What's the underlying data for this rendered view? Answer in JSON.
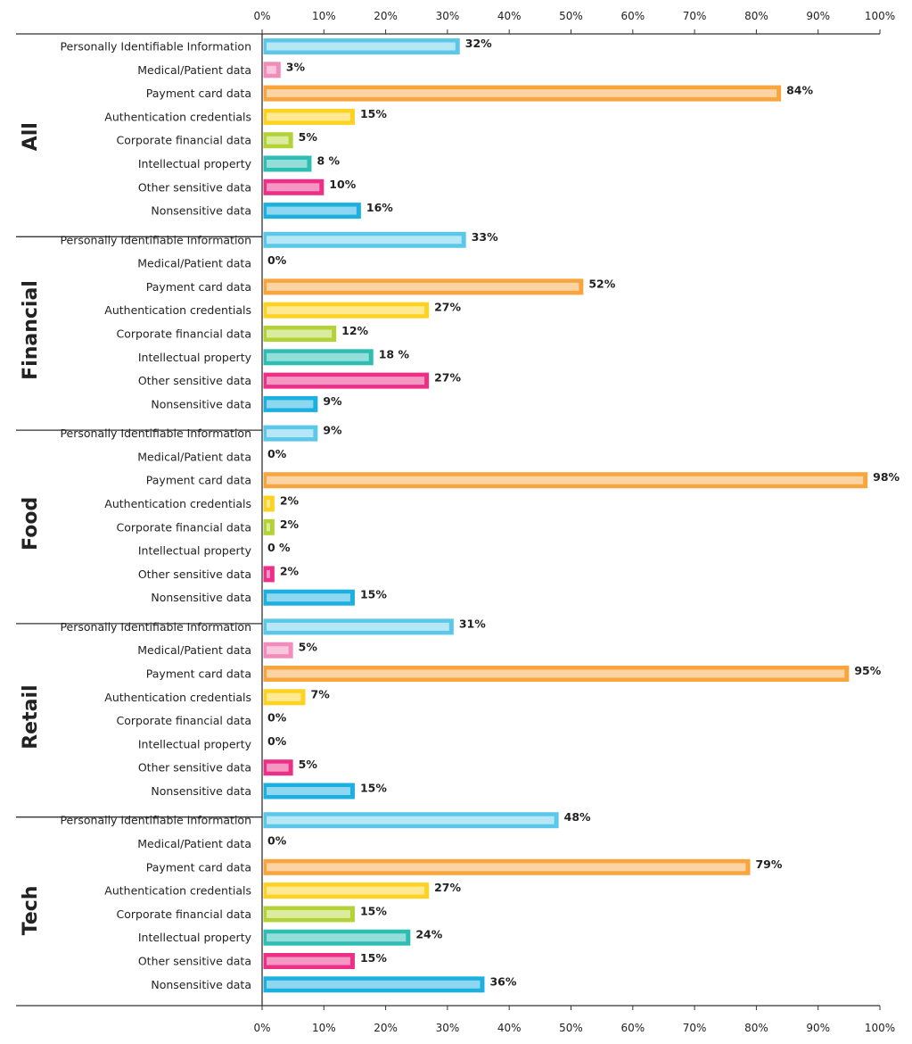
{
  "chart_data": {
    "type": "bar",
    "orientation": "horizontal",
    "xlim": [
      0,
      100
    ],
    "x_ticks": [
      "0%",
      "10%",
      "20%",
      "30%",
      "40%",
      "50%",
      "60%",
      "70%",
      "80%",
      "90%",
      "100%"
    ],
    "categories": [
      "Personally Identifiable Information",
      "Medical/Patient data",
      "Payment card data",
      "Authentication credentials",
      "Corporate financial data",
      "Intellectual property",
      "Other sensitive data",
      "Nonsensitive data"
    ],
    "category_colors": {
      "fill": [
        "#5bc8ea",
        "#f28cba",
        "#f9a53e",
        "#ffd21f",
        "#b2d235",
        "#2ebdb3",
        "#ee2f87",
        "#1cb0e0"
      ],
      "inner": [
        "#b6e7f7",
        "#f9c7dd",
        "#fcd3a2",
        "#ffea93",
        "#dcec9e",
        "#94ded9",
        "#f597c3",
        "#8dd8f0"
      ]
    },
    "groups": [
      {
        "name": "All",
        "values": [
          32,
          3,
          84,
          15,
          5,
          8,
          10,
          16
        ],
        "labels": [
          "32%",
          "3%",
          "84%",
          "15%",
          "5%",
          "8 %",
          "10%",
          "16%"
        ]
      },
      {
        "name": "Financial",
        "values": [
          33,
          0,
          52,
          27,
          12,
          18,
          27,
          9
        ],
        "labels": [
          "33%",
          "0%",
          "52%",
          "27%",
          "12%",
          "18 %",
          "27%",
          "9%"
        ]
      },
      {
        "name": "Food",
        "values": [
          9,
          0,
          98,
          2,
          2,
          0,
          2,
          15
        ],
        "labels": [
          "9%",
          "0%",
          "98%",
          "2%",
          "2%",
          "0 %",
          "2%",
          "15%"
        ]
      },
      {
        "name": "Retail",
        "values": [
          31,
          5,
          95,
          7,
          0,
          0,
          5,
          15
        ],
        "labels": [
          "31%",
          "5%",
          "95%",
          "7%",
          "0%",
          "0%",
          "5%",
          "15%"
        ]
      },
      {
        "name": "Tech",
        "values": [
          48,
          0,
          79,
          27,
          15,
          24,
          15,
          36
        ],
        "labels": [
          "48%",
          "0%",
          "79%",
          "27%",
          "15%",
          "24%",
          "15%",
          "36%"
        ]
      }
    ]
  }
}
